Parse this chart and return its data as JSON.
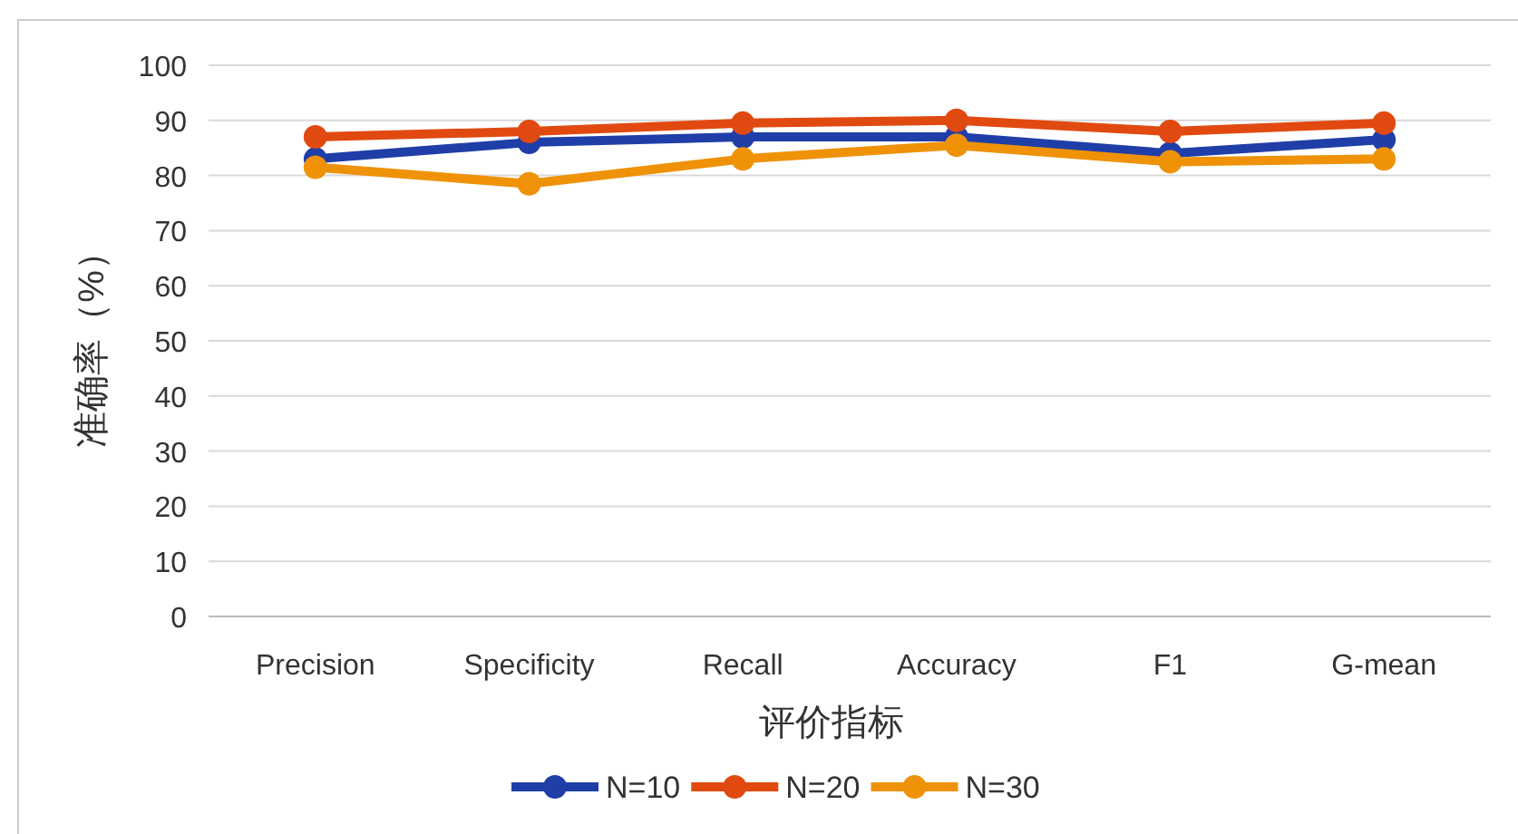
{
  "chart_data": {
    "type": "line",
    "xlabel": "评价指标",
    "ylabel": "准确率（%）",
    "categories": [
      "Precision",
      "Specificity",
      "Recall",
      "Accuracy",
      "F1",
      "G-mean"
    ],
    "series": [
      {
        "name": "N=10",
        "color": "#1f3ea8",
        "values": [
          83,
          86,
          87,
          87,
          84,
          86.5
        ]
      },
      {
        "name": "N=20",
        "color": "#e04a10",
        "values": [
          87,
          88,
          89.5,
          90,
          88,
          89.5
        ]
      },
      {
        "name": "N=30",
        "color": "#ef9208",
        "values": [
          81.5,
          78.5,
          83,
          85.5,
          82.5,
          83
        ]
      }
    ],
    "ylim": [
      0,
      100
    ],
    "yticks": [
      0,
      10,
      20,
      30,
      40,
      50,
      60,
      70,
      80,
      90,
      100
    ],
    "grid": "y",
    "legend": "bottom",
    "marker": "circle",
    "line_style": "solid"
  }
}
